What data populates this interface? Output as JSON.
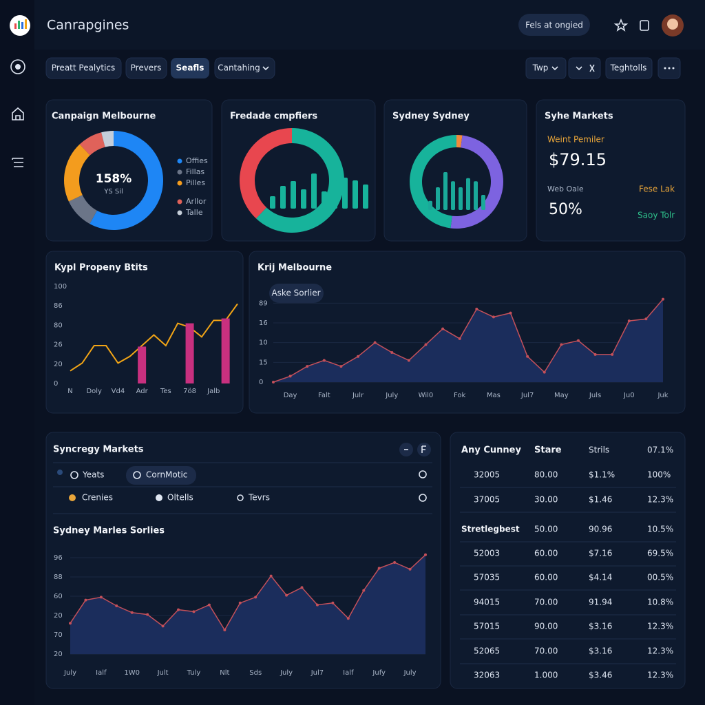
{
  "header": {
    "title": "Canrapgines",
    "button": "Fels at ongied"
  },
  "toolbar": {
    "tabs": [
      "Preatt Pealytics",
      "Prevers",
      "Seafls",
      "Cantahing"
    ],
    "right": [
      "Twp",
      "Teghtolls"
    ]
  },
  "chart_data": [
    {
      "type": "donut",
      "title": "Canpaign Melbourne",
      "center_value": "158%",
      "center_label": "YS Sil",
      "categories": [
        "Offies",
        "Fillas",
        "Pilles",
        "Arllor",
        "Talle"
      ],
      "values": [
        58,
        10,
        20,
        8,
        4
      ],
      "colors": [
        "#1e86f5",
        "#6b7588",
        "#f39c1e",
        "#e0625a",
        "#c5ced9"
      ]
    },
    {
      "type": "ring-bars",
      "title": "Fredade cmpfiers",
      "values": [
        62,
        38
      ],
      "colors": [
        "#17b39b",
        "#e8474f"
      ],
      "bars": [
        18,
        33,
        40,
        28,
        51,
        25,
        41,
        45,
        41,
        35
      ],
      "bar_color": "#17b39b"
    },
    {
      "type": "ring-bars",
      "title": "Sydney Sydney",
      "values": [
        2,
        50,
        48
      ],
      "colors": [
        "#f08a3c",
        "#7d63e0",
        "#17b39b"
      ],
      "bars": [
        12,
        30,
        50,
        38,
        30,
        42,
        38,
        20
      ],
      "bar_color": "#1aa99a"
    },
    {
      "type": "line-bar",
      "title": "Kypl Propeny Btits",
      "categories": [
        "N",
        null,
        "Doly",
        null,
        "Vd4",
        null,
        "Adr",
        null,
        "Tes",
        null,
        "7ö8",
        null,
        "Jalb",
        null,
        null
      ],
      "series": [
        {
          "type": "line",
          "color": "#f2a516",
          "values": [
            13,
            21,
            39,
            39,
            21,
            28,
            39,
            50,
            39,
            62,
            58,
            48,
            65,
            65,
            82
          ]
        },
        {
          "type": "bar",
          "color": "#c8307f",
          "values": [
            null,
            null,
            null,
            null,
            null,
            null,
            38,
            null,
            null,
            null,
            62,
            null,
            null,
            67,
            null
          ]
        }
      ],
      "ylim": [
        0,
        100
      ],
      "yticks": [
        0,
        20,
        {
          "value": 40,
          "label": "26"
        },
        {
          "value": 60,
          "label": "80"
        },
        {
          "value": 80,
          "label": "86"
        },
        100
      ],
      "grid": false
    },
    {
      "type": "area",
      "title": "Krij Melbourne",
      "button": "Aske Sorlier",
      "categories": [
        null,
        "Day",
        null,
        "Falt",
        null,
        "Julr",
        null,
        "July",
        null,
        "Wil0",
        null,
        "Fok",
        null,
        "Mas",
        null,
        "Jul7",
        null,
        "May",
        null,
        "Juls",
        null,
        "Ju0",
        null,
        "Juk"
      ],
      "values": [
        0,
        3,
        8,
        11,
        8,
        13,
        20,
        15,
        11,
        19,
        27,
        22,
        37,
        33,
        35,
        13,
        5,
        19,
        21,
        14,
        14,
        31,
        32,
        42
      ],
      "color": "#c4505a",
      "area_color": "#1b2d5c",
      "ylim": [
        0,
        45
      ],
      "yticks": [
        0,
        {
          "value": 10,
          "label": "15"
        },
        {
          "value": 20,
          "label": "10"
        },
        {
          "value": 30,
          "label": "16"
        },
        {
          "value": 40,
          "label": "89"
        }
      ],
      "grid": true
    },
    {
      "type": "area",
      "title": "Sydney Marles Sorlies",
      "categories": [
        "July",
        null,
        "Ialf",
        null,
        "1W0",
        null,
        "Jult",
        null,
        "Tuly",
        null,
        "Nlt",
        null,
        "Sds",
        null,
        "July",
        null,
        "Jul7",
        null,
        "Ialf",
        null,
        "Jufy",
        null,
        "July",
        null
      ],
      "values": [
        32,
        56,
        59,
        50,
        43,
        41,
        29,
        46,
        44,
        51,
        25,
        53,
        59,
        81,
        61,
        69,
        51,
        53,
        37,
        66,
        89,
        95,
        88,
        103
      ],
      "color": "#c4505a",
      "area_color": "#1b2d5c",
      "ylim": [
        0,
        105
      ],
      "yticks": [
        {
          "value": 0,
          "label": "20"
        },
        {
          "value": 20,
          "label": "70"
        },
        {
          "value": 40,
          "label": "20"
        },
        60,
        {
          "value": 80,
          "label": "88"
        },
        {
          "value": 100,
          "label": "96"
        }
      ],
      "grid": true
    }
  ],
  "kpi": {
    "title": "Syhe Markets",
    "label1": "Weint Pemiler",
    "value1": "$79.15",
    "label2": "Web Oale",
    "value2": "50%",
    "note1": "Fese Lak",
    "note2": "Saoy Tolr"
  },
  "filters": {
    "title": "Syncregy Markets",
    "items": [
      "Yeats",
      "CornMotic",
      "Crenies",
      "Oltells",
      "Tevrs"
    ]
  },
  "table": {
    "header": [
      "Any Cunney",
      "Stare",
      "Strils",
      "07.1%"
    ],
    "rows": [
      [
        "32005",
        "80.00",
        "$1.1%",
        "100%"
      ],
      [
        "37005",
        "30.00",
        "$1.46",
        "12.3%"
      ],
      [
        "Stretlegbest",
        "50.00",
        "90.96",
        "10.5%"
      ],
      [
        "52003",
        "60.00",
        "$7.16",
        "69.5%"
      ],
      [
        "57035",
        "60.00",
        "$4.14",
        "00.5%"
      ],
      [
        "94015",
        "70.00",
        "91.94",
        "10.8%"
      ],
      [
        "57015",
        "90.00",
        "$3.16",
        "12.3%"
      ],
      [
        "52065",
        "70.00",
        "$3.16",
        "12.3%"
      ],
      [
        "32063",
        "1.000",
        "$3.46",
        "12.3%"
      ]
    ]
  }
}
